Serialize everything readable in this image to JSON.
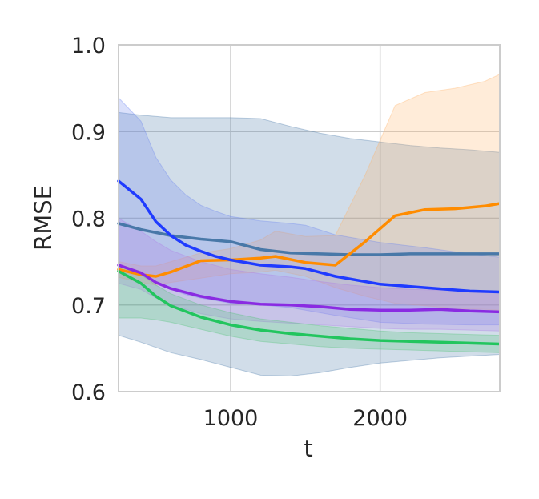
{
  "chart_data": {
    "type": "line",
    "xlabel": "t",
    "ylabel": "RMSE",
    "xlim": [
      250,
      2800
    ],
    "ylim": [
      0.6,
      1.0
    ],
    "xticks": [
      1000,
      2000
    ],
    "xtick_labels": [
      "1000",
      "2000"
    ],
    "yticks": [
      0.6,
      0.7,
      0.8,
      0.9,
      1.0
    ],
    "ytick_labels": [
      "0.6",
      "0.7",
      "0.8",
      "0.9",
      "1.0"
    ],
    "grid": true,
    "legend": "none",
    "series": [
      {
        "color": "#4878a8",
        "band_color": "#4878a8",
        "x": [
          250,
          400,
          600,
          800,
          1000,
          1200,
          1400,
          1600,
          1800,
          2000,
          2200,
          2400,
          2600,
          2800
        ],
        "y": [
          0.794,
          0.787,
          0.78,
          0.776,
          0.773,
          0.764,
          0.76,
          0.759,
          0.758,
          0.758,
          0.759,
          0.759,
          0.759,
          0.759
        ],
        "lower": [
          0.665,
          0.657,
          0.645,
          0.637,
          0.628,
          0.619,
          0.618,
          0.622,
          0.628,
          0.633,
          0.636,
          0.639,
          0.641,
          0.643
        ],
        "upper": [
          0.922,
          0.919,
          0.916,
          0.916,
          0.916,
          0.915,
          0.906,
          0.898,
          0.892,
          0.888,
          0.884,
          0.881,
          0.879,
          0.876
        ]
      },
      {
        "color": "#ff8c00",
        "band_color": "#ffb366",
        "x": [
          250,
          400,
          500,
          600,
          800,
          1000,
          1200,
          1300,
          1500,
          1700,
          1900,
          2100,
          2300,
          2500,
          2700,
          2800
        ],
        "y": [
          0.741,
          0.735,
          0.733,
          0.738,
          0.751,
          0.752,
          0.754,
          0.756,
          0.749,
          0.746,
          0.773,
          0.803,
          0.81,
          0.811,
          0.814,
          0.817
        ],
        "lower": [
          0.732,
          0.726,
          0.723,
          0.726,
          0.731,
          0.736,
          0.738,
          0.74,
          0.733,
          0.72,
          0.71,
          0.702,
          0.699,
          0.696,
          0.695,
          0.694
        ],
        "upper": [
          0.75,
          0.745,
          0.745,
          0.75,
          0.76,
          0.765,
          0.775,
          0.785,
          0.779,
          0.78,
          0.85,
          0.93,
          0.945,
          0.95,
          0.958,
          0.966
        ]
      },
      {
        "color": "#1f3bff",
        "band_color": "#6b85f0",
        "x": [
          250,
          400,
          500,
          600,
          700,
          800,
          900,
          1000,
          1200,
          1400,
          1500,
          1700,
          2000,
          2300,
          2600,
          2800
        ],
        "y": [
          0.843,
          0.822,
          0.796,
          0.78,
          0.769,
          0.762,
          0.756,
          0.752,
          0.746,
          0.744,
          0.742,
          0.733,
          0.724,
          0.72,
          0.716,
          0.715
        ],
        "lower": [
          0.747,
          0.737,
          0.725,
          0.718,
          0.712,
          0.708,
          0.705,
          0.702,
          0.7,
          0.697,
          0.694,
          0.688,
          0.68,
          0.678,
          0.677,
          0.677
        ],
        "upper": [
          0.939,
          0.912,
          0.87,
          0.844,
          0.827,
          0.815,
          0.808,
          0.802,
          0.797,
          0.794,
          0.792,
          0.781,
          0.772,
          0.766,
          0.759,
          0.755
        ]
      },
      {
        "color": "#8a2be2",
        "band_color": "#b07ae8",
        "x": [
          250,
          400,
          500,
          600,
          800,
          1000,
          1200,
          1400,
          1600,
          1800,
          2000,
          2200,
          2400,
          2600,
          2800
        ],
        "y": [
          0.746,
          0.737,
          0.726,
          0.719,
          0.71,
          0.704,
          0.701,
          0.7,
          0.698,
          0.695,
          0.694,
          0.694,
          0.695,
          0.693,
          0.692
        ],
        "lower": [
          0.725,
          0.718,
          0.708,
          0.7,
          0.69,
          0.684,
          0.681,
          0.679,
          0.677,
          0.675,
          0.673,
          0.672,
          0.672,
          0.671,
          0.67
        ],
        "upper": [
          0.8,
          0.785,
          0.773,
          0.763,
          0.75,
          0.741,
          0.736,
          0.732,
          0.727,
          0.723,
          0.72,
          0.718,
          0.717,
          0.716,
          0.715
        ]
      },
      {
        "color": "#22c55e",
        "band_color": "#4fc476",
        "x": [
          250,
          400,
          500,
          600,
          800,
          1000,
          1200,
          1400,
          1600,
          1800,
          2000,
          2200,
          2400,
          2600,
          2800
        ],
        "y": [
          0.739,
          0.725,
          0.71,
          0.699,
          0.686,
          0.677,
          0.671,
          0.667,
          0.664,
          0.661,
          0.659,
          0.658,
          0.657,
          0.656,
          0.655
        ],
        "lower": [
          0.685,
          0.685,
          0.683,
          0.68,
          0.672,
          0.664,
          0.658,
          0.655,
          0.652,
          0.65,
          0.649,
          0.648,
          0.647,
          0.646,
          0.645
        ],
        "upper": [
          0.745,
          0.735,
          0.723,
          0.713,
          0.7,
          0.691,
          0.684,
          0.68,
          0.676,
          0.673,
          0.67,
          0.668,
          0.667,
          0.666,
          0.665
        ]
      }
    ]
  }
}
